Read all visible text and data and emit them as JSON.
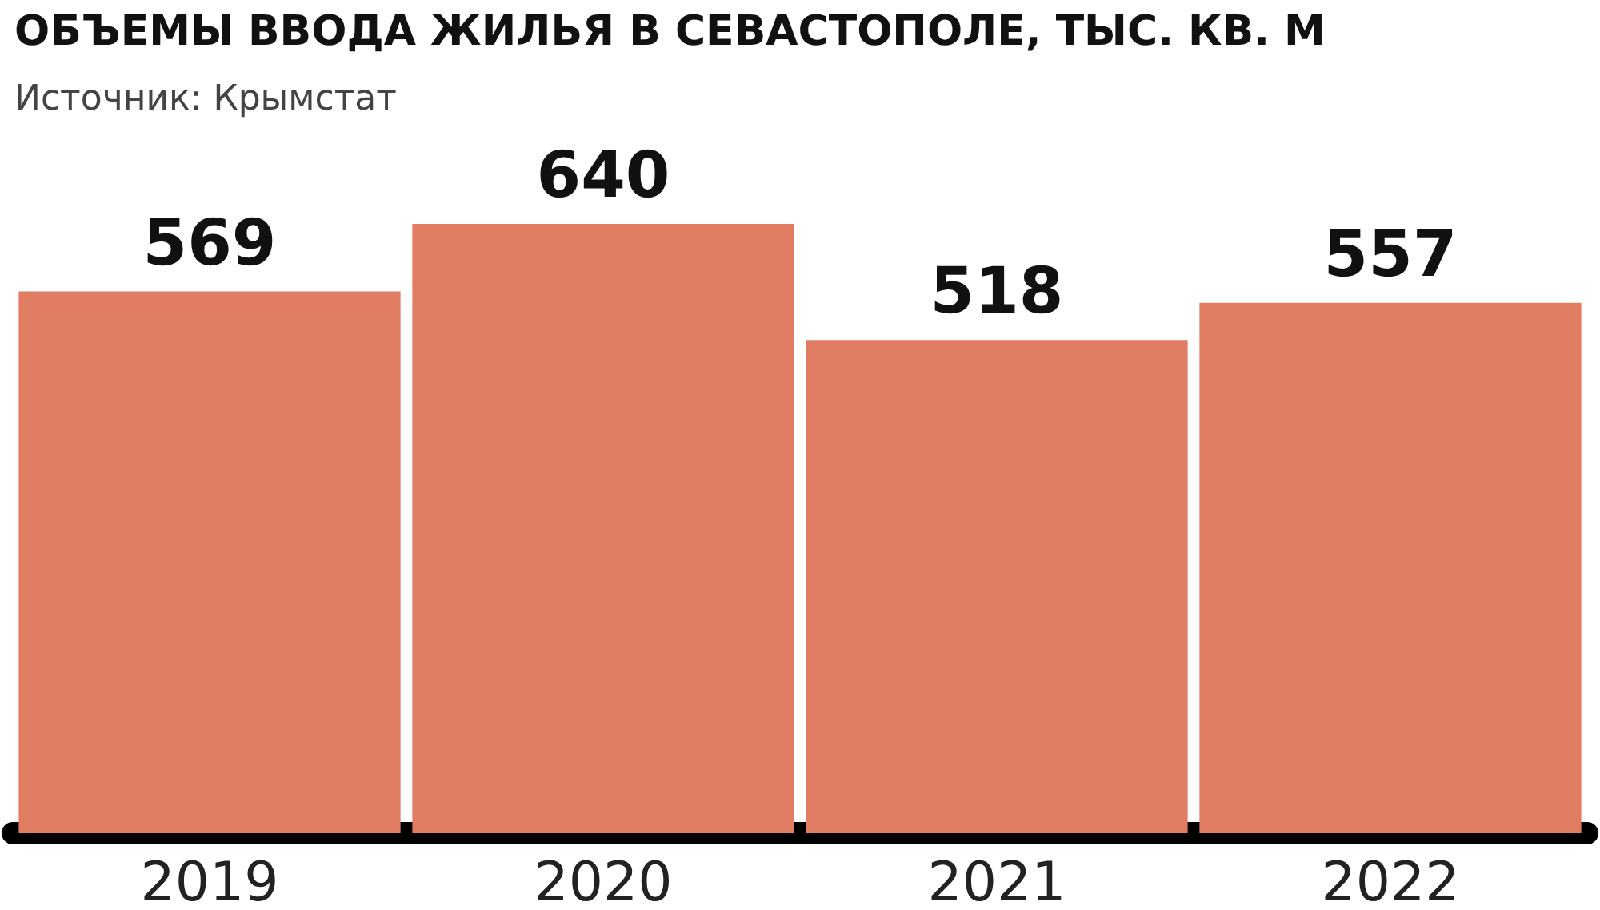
{
  "chart_data": {
    "type": "bar",
    "title": "ОБЪЕМЫ ВВОДА ЖИЛЬЯ В СЕВАСТОПОЛЕ, ТЫС. КВ. М",
    "subtitle": "Источник: Крымстат",
    "categories": [
      "2019",
      "2020",
      "2021",
      "2022"
    ],
    "values": [
      569,
      640,
      518,
      557
    ],
    "color": "#df7c61",
    "data_labels": true
  }
}
